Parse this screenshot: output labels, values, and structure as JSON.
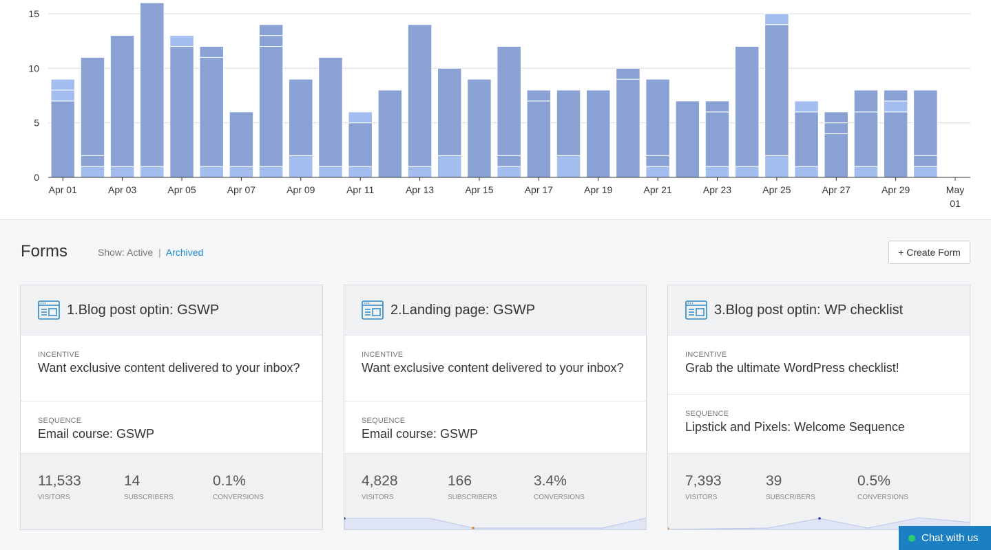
{
  "chart_data": {
    "type": "bar",
    "stacked": true,
    "categories": [
      "Apr 01",
      "Apr 02",
      "Apr 03",
      "Apr 04",
      "Apr 05",
      "Apr 06",
      "Apr 07",
      "Apr 08",
      "Apr 09",
      "Apr 10",
      "Apr 11",
      "Apr 12",
      "Apr 13",
      "Apr 14",
      "Apr 15",
      "Apr 16",
      "Apr 17",
      "Apr 18",
      "Apr 19",
      "Apr 20",
      "Apr 21",
      "Apr 22",
      "Apr 23",
      "Apr 24",
      "Apr 25",
      "Apr 26",
      "Apr 27",
      "Apr 28",
      "Apr 29",
      "Apr 30",
      "May 01"
    ],
    "x_tick_labels": [
      "Apr 01",
      "Apr 03",
      "Apr 05",
      "Apr 07",
      "Apr 09",
      "Apr 11",
      "Apr 13",
      "Apr 15",
      "Apr 17",
      "Apr 19",
      "Apr 21",
      "Apr 23",
      "Apr 25",
      "Apr 27",
      "Apr 29",
      "May 01"
    ],
    "stacks": [
      [
        {
          "v": 7,
          "c": "dark"
        },
        {
          "v": 1,
          "c": "light"
        },
        {
          "v": 1,
          "c": "light"
        }
      ],
      [
        {
          "v": 1,
          "c": "light"
        },
        {
          "v": 1,
          "c": "dark"
        },
        {
          "v": 9,
          "c": "dark"
        }
      ],
      [
        {
          "v": 1,
          "c": "light"
        },
        {
          "v": 12,
          "c": "dark"
        }
      ],
      [
        {
          "v": 1,
          "c": "light"
        },
        {
          "v": 15,
          "c": "dark"
        }
      ],
      [
        {
          "v": 12,
          "c": "dark"
        },
        {
          "v": 1,
          "c": "light"
        }
      ],
      [
        {
          "v": 1,
          "c": "light"
        },
        {
          "v": 10,
          "c": "dark"
        },
        {
          "v": 1,
          "c": "dark"
        }
      ],
      [
        {
          "v": 1,
          "c": "light"
        },
        {
          "v": 5,
          "c": "dark"
        }
      ],
      [
        {
          "v": 1,
          "c": "light"
        },
        {
          "v": 11,
          "c": "dark"
        },
        {
          "v": 1,
          "c": "dark"
        },
        {
          "v": 1,
          "c": "dark"
        }
      ],
      [
        {
          "v": 2,
          "c": "light"
        },
        {
          "v": 7,
          "c": "dark"
        }
      ],
      [
        {
          "v": 1,
          "c": "light"
        },
        {
          "v": 10,
          "c": "dark"
        }
      ],
      [
        {
          "v": 1,
          "c": "light"
        },
        {
          "v": 4,
          "c": "dark"
        },
        {
          "v": 1,
          "c": "light"
        }
      ],
      [
        {
          "v": 8,
          "c": "dark"
        }
      ],
      [
        {
          "v": 1,
          "c": "light"
        },
        {
          "v": 13,
          "c": "dark"
        }
      ],
      [
        {
          "v": 2,
          "c": "light"
        },
        {
          "v": 8,
          "c": "dark"
        }
      ],
      [
        {
          "v": 9,
          "c": "dark"
        }
      ],
      [
        {
          "v": 1,
          "c": "light"
        },
        {
          "v": 1,
          "c": "dark"
        },
        {
          "v": 10,
          "c": "dark"
        }
      ],
      [
        {
          "v": 7,
          "c": "dark"
        },
        {
          "v": 1,
          "c": "dark"
        }
      ],
      [
        {
          "v": 2,
          "c": "light"
        },
        {
          "v": 6,
          "c": "dark"
        }
      ],
      [
        {
          "v": 8,
          "c": "dark"
        }
      ],
      [
        {
          "v": 9,
          "c": "dark"
        },
        {
          "v": 1,
          "c": "dark"
        }
      ],
      [
        {
          "v": 1,
          "c": "light"
        },
        {
          "v": 1,
          "c": "dark"
        },
        {
          "v": 7,
          "c": "dark"
        }
      ],
      [
        {
          "v": 7,
          "c": "dark"
        }
      ],
      [
        {
          "v": 1,
          "c": "light"
        },
        {
          "v": 5,
          "c": "dark"
        },
        {
          "v": 1,
          "c": "dark"
        }
      ],
      [
        {
          "v": 1,
          "c": "light"
        },
        {
          "v": 11,
          "c": "dark"
        }
      ],
      [
        {
          "v": 2,
          "c": "light"
        },
        {
          "v": 12,
          "c": "dark"
        },
        {
          "v": 1,
          "c": "light"
        }
      ],
      [
        {
          "v": 1,
          "c": "light"
        },
        {
          "v": 5,
          "c": "dark"
        },
        {
          "v": 1,
          "c": "light"
        }
      ],
      [
        {
          "v": 4,
          "c": "dark"
        },
        {
          "v": 1,
          "c": "dark"
        },
        {
          "v": 1,
          "c": "dark"
        }
      ],
      [
        {
          "v": 1,
          "c": "light"
        },
        {
          "v": 5,
          "c": "dark"
        },
        {
          "v": 2,
          "c": "dark"
        }
      ],
      [
        {
          "v": 6,
          "c": "dark"
        },
        {
          "v": 1,
          "c": "light"
        },
        {
          "v": 1,
          "c": "dark"
        }
      ],
      [
        {
          "v": 1,
          "c": "light"
        },
        {
          "v": 1,
          "c": "dark"
        },
        {
          "v": 6,
          "c": "dark"
        }
      ],
      []
    ],
    "ylim": [
      0,
      16
    ],
    "y_ticks": [
      0,
      5,
      10,
      15
    ],
    "grid": true,
    "colors": {
      "dark": "#8aa1d4",
      "light": "#a4bdef"
    }
  },
  "forms": {
    "title": "Forms",
    "show_label": "Show:",
    "active_label": "Active",
    "separator": "|",
    "archived_label": "Archived",
    "create_button": "+ Create Form"
  },
  "cards": [
    {
      "title": "1.Blog post optin: GSWP",
      "incentive_label": "INCENTIVE",
      "incentive": "Want exclusive content delivered to your inbox?",
      "sequence_label": "SEQUENCE",
      "sequence": "Email course: GSWP",
      "visitors": "11,533",
      "visitors_label": "VISITORS",
      "subscribers": "14",
      "subscribers_label": "SUBSCRIBERS",
      "conversions": "0.1%",
      "conversions_label": "CONVERSIONS"
    },
    {
      "title": "2.Landing page: GSWP",
      "incentive_label": "INCENTIVE",
      "incentive": "Want exclusive content delivered to your inbox?",
      "sequence_label": "SEQUENCE",
      "sequence": "Email course: GSWP",
      "visitors": "4,828",
      "visitors_label": "VISITORS",
      "subscribers": "166",
      "subscribers_label": "SUBSCRIBERS",
      "conversions": "3.4%",
      "conversions_label": "CONVERSIONS"
    },
    {
      "title": "3.Blog post optin: WP checklist",
      "incentive_label": "INCENTIVE",
      "incentive": "Grab the ultimate WordPress checklist!",
      "sequence_label": "SEQUENCE",
      "sequence": "Lipstick and Pixels: Welcome Sequence",
      "visitors": "7,393",
      "visitors_label": "VISITORS",
      "subscribers": "39",
      "subscribers_label": "SUBSCRIBERS",
      "conversions": "0.5%",
      "conversions_label": "CONVERSIONS"
    }
  ],
  "chat": {
    "label": "Chat with us",
    "status_color": "#2ecc71"
  },
  "icons": {
    "form_icon": "form-window-icon"
  }
}
